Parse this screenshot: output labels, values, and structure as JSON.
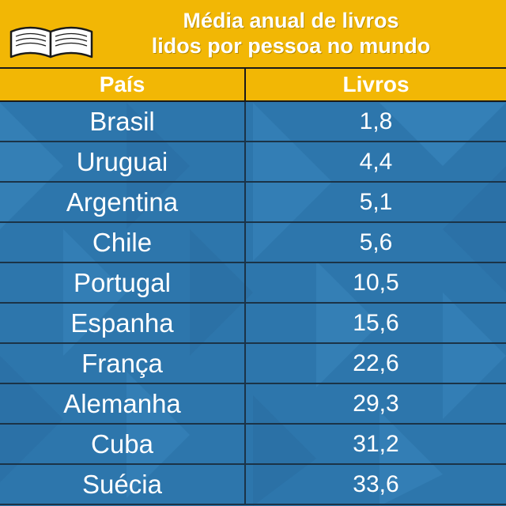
{
  "title_line1": "Média anual de livros",
  "title_line2": "lidos por pessoa no mundo",
  "colors": {
    "header": "#f2b705",
    "body": "#2d76ac",
    "text": "#ffffff"
  },
  "icon": "open-book-icon",
  "chart_data": {
    "type": "table",
    "title": "Média anual de livros lidos por pessoa no mundo",
    "columns": [
      "País",
      "Livros"
    ],
    "rows": [
      [
        "Brasil",
        "1,8"
      ],
      [
        "Uruguai",
        "4,4"
      ],
      [
        "Argentina",
        "5,1"
      ],
      [
        "Chile",
        "5,6"
      ],
      [
        "Portugal",
        "10,5"
      ],
      [
        "Espanha",
        "15,6"
      ],
      [
        "França",
        "22,6"
      ],
      [
        "Alemanha",
        "29,3"
      ],
      [
        "Cuba",
        "31,2"
      ],
      [
        "Suécia",
        "33,6"
      ]
    ]
  }
}
